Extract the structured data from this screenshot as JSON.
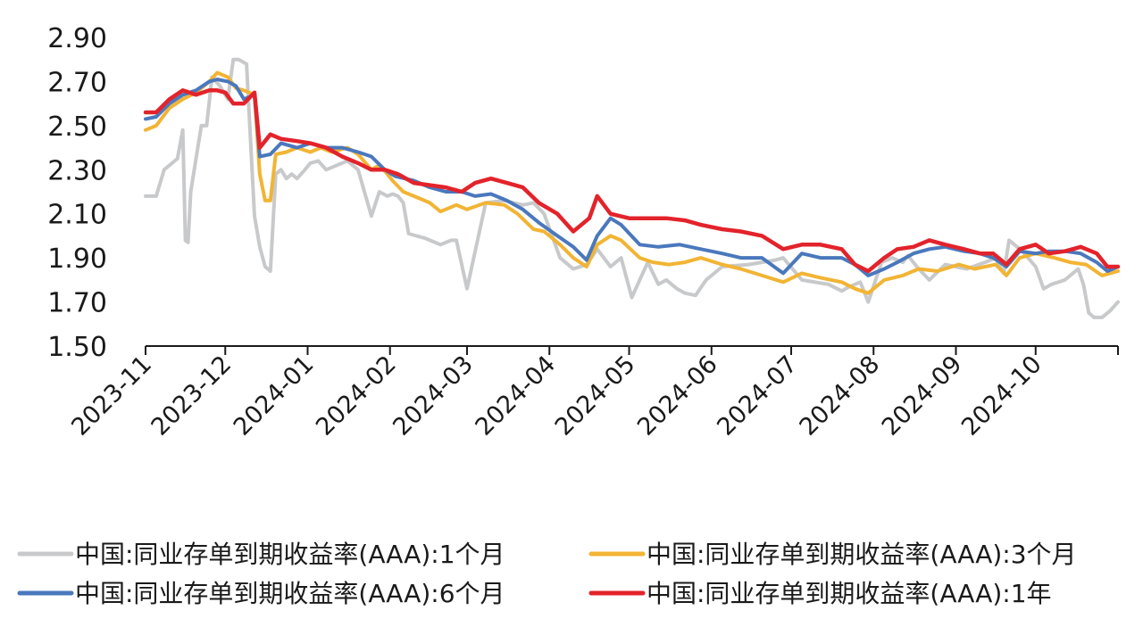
{
  "chart_data": {
    "type": "line",
    "title": "",
    "xlabel": "",
    "ylabel": "",
    "ylim": [
      1.5,
      2.9
    ],
    "yticks": [
      "2.90",
      "2.70",
      "2.50",
      "2.30",
      "2.10",
      "1.90",
      "1.70",
      "1.50"
    ],
    "ytick_values": [
      2.9,
      2.7,
      2.5,
      2.3,
      2.1,
      1.9,
      1.7,
      1.5
    ],
    "xlim": [
      "2023-11-01",
      "2024-11-01"
    ],
    "xticks": [
      "2023-11",
      "2023-12",
      "2024-01",
      "2024-02",
      "2024-03",
      "2024-04",
      "2024-05",
      "2024-06",
      "2024-07",
      "2024-08",
      "2024-09",
      "2024-10"
    ],
    "xtick_dates": [
      "2023-11-01",
      "2023-12-01",
      "2024-01-01",
      "2024-02-01",
      "2024-03-01",
      "2024-04-01",
      "2024-05-01",
      "2024-06-01",
      "2024-07-01",
      "2024-08-01",
      "2024-09-01",
      "2024-10-01"
    ],
    "grid": false,
    "legend_position": "bottom",
    "series": [
      {
        "name": "中国:同业存单到期收益率(AAA):1个月",
        "color": "#c8c9cb",
        "x": [
          "2023-11-01",
          "2023-11-05",
          "2023-11-08",
          "2023-11-13",
          "2023-11-15",
          "2023-11-16",
          "2023-11-17",
          "2023-11-18",
          "2023-11-20",
          "2023-11-22",
          "2023-11-24",
          "2023-11-26",
          "2023-11-29",
          "2023-12-02",
          "2023-12-04",
          "2023-12-06",
          "2023-12-09",
          "2023-12-12",
          "2023-12-14",
          "2023-12-16",
          "2023-12-18",
          "2023-12-20",
          "2023-12-22",
          "2023-12-24",
          "2023-12-26",
          "2023-12-28",
          "2023-12-31",
          "2024-01-02",
          "2024-01-05",
          "2024-01-08",
          "2024-01-12",
          "2024-01-16",
          "2024-01-20",
          "2024-01-25",
          "2024-01-28",
          "2024-01-31",
          "2024-02-02",
          "2024-02-04",
          "2024-02-06",
          "2024-02-08",
          "2024-02-14",
          "2024-02-20",
          "2024-02-24",
          "2024-02-26",
          "2024-03-01",
          "2024-03-08",
          "2024-03-15",
          "2024-03-22",
          "2024-03-26",
          "2024-03-30",
          "2024-04-05",
          "2024-04-10",
          "2024-04-15",
          "2024-04-19",
          "2024-04-24",
          "2024-04-28",
          "2024-05-02",
          "2024-05-08",
          "2024-05-12",
          "2024-05-15",
          "2024-05-19",
          "2024-05-22",
          "2024-05-26",
          "2024-05-30",
          "2024-06-05",
          "2024-06-15",
          "2024-06-25",
          "2024-06-28",
          "2024-07-05",
          "2024-07-15",
          "2024-07-20",
          "2024-07-23",
          "2024-07-27",
          "2024-07-30",
          "2024-08-04",
          "2024-08-08",
          "2024-08-12",
          "2024-08-14",
          "2024-08-18",
          "2024-08-22",
          "2024-08-28",
          "2024-09-05",
          "2024-09-12",
          "2024-09-16",
          "2024-09-19",
          "2024-09-21",
          "2024-09-23",
          "2024-09-26",
          "2024-10-01",
          "2024-10-04",
          "2024-10-07",
          "2024-10-12",
          "2024-10-17",
          "2024-10-19",
          "2024-10-21",
          "2024-10-23",
          "2024-10-26",
          "2024-10-29",
          "2024-11-01"
        ],
        "values": [
          2.18,
          2.18,
          2.3,
          2.35,
          2.48,
          1.98,
          1.97,
          2.2,
          2.35,
          2.5,
          2.5,
          2.72,
          2.68,
          2.62,
          2.8,
          2.8,
          2.78,
          2.09,
          1.95,
          1.86,
          1.84,
          2.28,
          2.3,
          2.26,
          2.28,
          2.26,
          2.3,
          2.33,
          2.34,
          2.3,
          2.32,
          2.34,
          2.3,
          2.09,
          2.2,
          2.18,
          2.19,
          2.18,
          2.15,
          2.01,
          1.99,
          1.96,
          1.98,
          1.98,
          1.76,
          2.15,
          2.16,
          2.14,
          2.15,
          2.1,
          1.9,
          1.85,
          1.87,
          1.94,
          1.86,
          1.9,
          1.72,
          1.88,
          1.78,
          1.8,
          1.76,
          1.74,
          1.73,
          1.8,
          1.86,
          1.87,
          1.89,
          1.9,
          1.8,
          1.78,
          1.75,
          1.77,
          1.79,
          1.7,
          1.88,
          1.9,
          1.88,
          1.91,
          1.85,
          1.8,
          1.87,
          1.85,
          1.88,
          1.9,
          1.83,
          1.98,
          1.96,
          1.93,
          1.86,
          1.76,
          1.78,
          1.8,
          1.85,
          1.78,
          1.65,
          1.63,
          1.63,
          1.66,
          1.7
        ]
      },
      {
        "name": "中国:同业存单到期收益率(AAA):3个月",
        "color": "#f2b434",
        "x": [
          "2023-11-01",
          "2023-11-05",
          "2023-11-10",
          "2023-11-15",
          "2023-11-20",
          "2023-11-25",
          "2023-11-28",
          "2023-12-02",
          "2023-12-05",
          "2023-12-08",
          "2023-12-12",
          "2023-12-14",
          "2023-12-16",
          "2023-12-18",
          "2023-12-20",
          "2023-12-24",
          "2023-12-28",
          "2024-01-02",
          "2024-01-06",
          "2024-01-10",
          "2024-01-16",
          "2024-01-20",
          "2024-01-25",
          "2024-01-28",
          "2024-01-31",
          "2024-02-02",
          "2024-02-06",
          "2024-02-10",
          "2024-02-16",
          "2024-02-20",
          "2024-02-26",
          "2024-03-01",
          "2024-03-08",
          "2024-03-15",
          "2024-03-20",
          "2024-03-26",
          "2024-03-30",
          "2024-04-05",
          "2024-04-10",
          "2024-04-15",
          "2024-04-19",
          "2024-04-24",
          "2024-04-28",
          "2024-05-05",
          "2024-05-10",
          "2024-05-16",
          "2024-05-22",
          "2024-05-28",
          "2024-06-05",
          "2024-06-12",
          "2024-06-20",
          "2024-06-28",
          "2024-07-05",
          "2024-07-12",
          "2024-07-20",
          "2024-07-25",
          "2024-07-30",
          "2024-08-05",
          "2024-08-12",
          "2024-08-18",
          "2024-08-25",
          "2024-09-02",
          "2024-09-08",
          "2024-09-16",
          "2024-09-20",
          "2024-09-25",
          "2024-10-01",
          "2024-10-08",
          "2024-10-14",
          "2024-10-20",
          "2024-10-26",
          "2024-11-01"
        ],
        "values": [
          2.48,
          2.5,
          2.58,
          2.62,
          2.65,
          2.7,
          2.74,
          2.72,
          2.67,
          2.66,
          2.64,
          2.28,
          2.16,
          2.16,
          2.37,
          2.38,
          2.4,
          2.38,
          2.4,
          2.38,
          2.4,
          2.37,
          2.3,
          2.32,
          2.28,
          2.25,
          2.2,
          2.18,
          2.15,
          2.11,
          2.14,
          2.12,
          2.15,
          2.14,
          2.1,
          2.03,
          2.02,
          1.96,
          1.9,
          1.86,
          1.96,
          2.0,
          1.98,
          1.9,
          1.88,
          1.87,
          1.88,
          1.9,
          1.87,
          1.85,
          1.82,
          1.79,
          1.83,
          1.81,
          1.79,
          1.76,
          1.74,
          1.8,
          1.82,
          1.85,
          1.84,
          1.87,
          1.85,
          1.87,
          1.82,
          1.9,
          1.92,
          1.9,
          1.88,
          1.87,
          1.82,
          1.84
        ]
      },
      {
        "name": "中国:同业存单到期收益率(AAA):6个月",
        "color": "#4a78bd",
        "x": [
          "2023-11-01",
          "2023-11-05",
          "2023-11-10",
          "2023-11-15",
          "2023-11-20",
          "2023-11-25",
          "2023-11-28",
          "2023-12-02",
          "2023-12-05",
          "2023-12-08",
          "2023-12-12",
          "2023-12-14",
          "2023-12-18",
          "2023-12-22",
          "2023-12-28",
          "2024-01-02",
          "2024-01-08",
          "2024-01-14",
          "2024-01-20",
          "2024-01-25",
          "2024-01-30",
          "2024-02-03",
          "2024-02-10",
          "2024-02-16",
          "2024-02-22",
          "2024-02-28",
          "2024-03-04",
          "2024-03-10",
          "2024-03-16",
          "2024-03-22",
          "2024-03-28",
          "2024-04-04",
          "2024-04-10",
          "2024-04-15",
          "2024-04-19",
          "2024-04-24",
          "2024-04-28",
          "2024-05-05",
          "2024-05-12",
          "2024-05-20",
          "2024-05-28",
          "2024-06-05",
          "2024-06-12",
          "2024-06-20",
          "2024-06-28",
          "2024-07-05",
          "2024-07-12",
          "2024-07-20",
          "2024-07-25",
          "2024-07-30",
          "2024-08-05",
          "2024-08-10",
          "2024-08-16",
          "2024-08-22",
          "2024-08-28",
          "2024-09-04",
          "2024-09-10",
          "2024-09-15",
          "2024-09-20",
          "2024-09-25",
          "2024-10-01",
          "2024-10-06",
          "2024-10-12",
          "2024-10-18",
          "2024-10-24",
          "2024-10-28",
          "2024-11-01"
        ],
        "values": [
          2.53,
          2.54,
          2.6,
          2.64,
          2.66,
          2.7,
          2.71,
          2.7,
          2.68,
          2.62,
          2.64,
          2.36,
          2.37,
          2.42,
          2.4,
          2.42,
          2.4,
          2.4,
          2.38,
          2.36,
          2.3,
          2.27,
          2.25,
          2.22,
          2.2,
          2.2,
          2.18,
          2.19,
          2.16,
          2.12,
          2.06,
          2.0,
          1.95,
          1.89,
          2.0,
          2.08,
          2.05,
          1.96,
          1.95,
          1.96,
          1.94,
          1.92,
          1.9,
          1.9,
          1.83,
          1.92,
          1.9,
          1.9,
          1.87,
          1.82,
          1.85,
          1.88,
          1.92,
          1.94,
          1.95,
          1.93,
          1.92,
          1.9,
          1.86,
          1.93,
          1.92,
          1.93,
          1.93,
          1.92,
          1.88,
          1.84,
          1.86
        ]
      },
      {
        "name": "中国:同业存单到期收益率(AAA):1年",
        "color": "#e3232b",
        "x": [
          "2023-11-01",
          "2023-11-05",
          "2023-11-10",
          "2023-11-15",
          "2023-11-20",
          "2023-11-25",
          "2023-11-28",
          "2023-12-01",
          "2023-12-04",
          "2023-12-08",
          "2023-12-12",
          "2023-12-14",
          "2023-12-18",
          "2023-12-22",
          "2023-12-28",
          "2024-01-02",
          "2024-01-08",
          "2024-01-14",
          "2024-01-20",
          "2024-01-25",
          "2024-01-30",
          "2024-02-04",
          "2024-02-10",
          "2024-02-16",
          "2024-02-22",
          "2024-02-28",
          "2024-03-04",
          "2024-03-10",
          "2024-03-16",
          "2024-03-22",
          "2024-03-28",
          "2024-04-04",
          "2024-04-10",
          "2024-04-16",
          "2024-04-19",
          "2024-04-24",
          "2024-05-01",
          "2024-05-08",
          "2024-05-15",
          "2024-05-22",
          "2024-05-28",
          "2024-06-05",
          "2024-06-12",
          "2024-06-20",
          "2024-06-28",
          "2024-07-05",
          "2024-07-12",
          "2024-07-20",
          "2024-07-25",
          "2024-07-30",
          "2024-08-05",
          "2024-08-10",
          "2024-08-16",
          "2024-08-22",
          "2024-08-28",
          "2024-09-04",
          "2024-09-10",
          "2024-09-15",
          "2024-09-20",
          "2024-09-25",
          "2024-10-01",
          "2024-10-06",
          "2024-10-12",
          "2024-10-18",
          "2024-10-24",
          "2024-10-28",
          "2024-11-01"
        ],
        "values": [
          2.56,
          2.56,
          2.62,
          2.66,
          2.64,
          2.66,
          2.66,
          2.65,
          2.6,
          2.6,
          2.65,
          2.4,
          2.46,
          2.44,
          2.43,
          2.42,
          2.4,
          2.36,
          2.33,
          2.3,
          2.3,
          2.28,
          2.24,
          2.23,
          2.22,
          2.2,
          2.24,
          2.26,
          2.24,
          2.22,
          2.15,
          2.1,
          2.02,
          2.08,
          2.18,
          2.1,
          2.08,
          2.08,
          2.08,
          2.07,
          2.05,
          2.03,
          2.02,
          2.0,
          1.94,
          1.96,
          1.96,
          1.94,
          1.87,
          1.84,
          1.9,
          1.94,
          1.95,
          1.98,
          1.96,
          1.94,
          1.92,
          1.92,
          1.87,
          1.94,
          1.96,
          1.92,
          1.93,
          1.95,
          1.92,
          1.86,
          1.86
        ]
      }
    ]
  }
}
